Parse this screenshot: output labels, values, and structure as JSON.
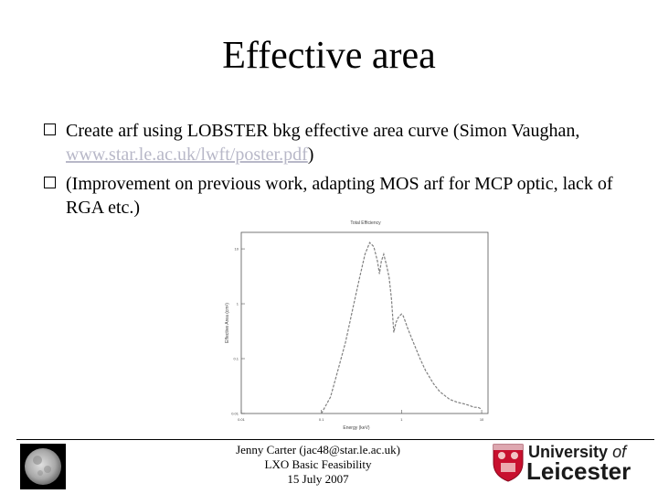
{
  "slide": {
    "title": "Effective area",
    "bullets": [
      {
        "before": "Create arf using LOBSTER bkg effective area curve (Simon Vaughan, ",
        "link": "www.star.le.ac.uk/lwft/poster.pdf",
        "after": ")"
      },
      {
        "before": "(Improvement on previous work, adapting MOS arf for MCP optic, lack of RGA etc.)",
        "link": "",
        "after": ""
      }
    ]
  },
  "chart_data": {
    "type": "line",
    "title": "Total Efficiency",
    "xlabel": "Energy (keV)",
    "ylabel": "Effective Area (cm²)",
    "x_scale": "log",
    "y_scale": "log",
    "xlim": [
      0.01,
      12
    ],
    "ylim": [
      0.01,
      20
    ],
    "x_ticks": [
      "0.01",
      "0.1",
      "1",
      "10"
    ],
    "y_ticks": [
      "10",
      "1",
      "0.1",
      "0.01"
    ],
    "series": [
      {
        "color": "#808080",
        "x": [
          0.1,
          0.13,
          0.16,
          0.2,
          0.25,
          0.3,
          0.35,
          0.4,
          0.45,
          0.5,
          0.53,
          0.56,
          0.6,
          0.65,
          0.7,
          0.75,
          0.8,
          0.85,
          0.9,
          0.95,
          1.0,
          1.05,
          1.1,
          1.2,
          1.4,
          1.7,
          2.0,
          2.5,
          3,
          4,
          5,
          6,
          7,
          8,
          9,
          10
        ],
        "y": [
          0.01,
          0.02,
          0.06,
          0.2,
          0.9,
          3,
          8,
          13,
          11,
          6,
          3.5,
          6,
          8,
          5,
          3,
          1.2,
          0.3,
          0.45,
          0.55,
          0.6,
          0.65,
          0.6,
          0.5,
          0.35,
          0.2,
          0.1,
          0.06,
          0.035,
          0.025,
          0.018,
          0.016,
          0.015,
          0.014,
          0.013,
          0.013,
          0.012
        ]
      }
    ]
  },
  "footer": {
    "line1": "Jenny Carter (jac48@star.le.ac.uk)",
    "line2": "LXO Basic Feasibility",
    "line3": "15 July 2007"
  },
  "logo": {
    "line1a": "University",
    "line1b": "of",
    "line2": "Leicester",
    "shield_color": "#c8102e"
  }
}
